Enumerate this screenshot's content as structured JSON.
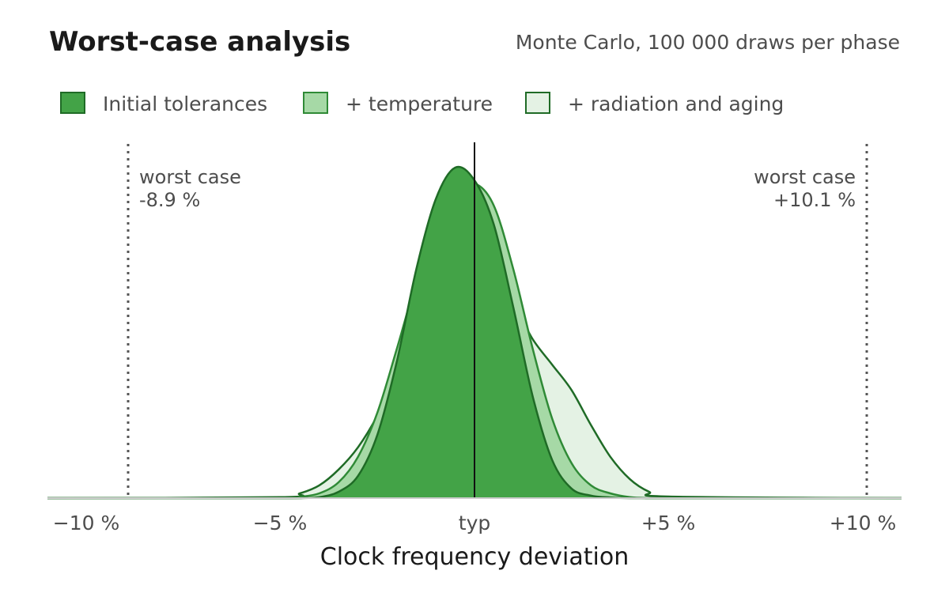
{
  "chart_data": {
    "type": "area",
    "title": "Worst-case analysis",
    "subtitle": "Monte Carlo, 100 000 draws per phase",
    "xlabel": "Clock frequency deviation",
    "ylabel": "",
    "xlim": [
      -11,
      11
    ],
    "ylim": [
      0,
      1.05
    ],
    "grid": false,
    "legend_position": "top-left",
    "x_ticks": [
      {
        "value": -10,
        "label": "−10 %"
      },
      {
        "value": -5,
        "label": "−5 %"
      },
      {
        "value": 0,
        "label": "typ"
      },
      {
        "value": 5,
        "label": "+5 %"
      },
      {
        "value": 10,
        "label": "+10 %"
      }
    ],
    "x": [
      -11,
      -5,
      -4.5,
      -4,
      -3.5,
      -3,
      -2.5,
      -2,
      -1.5,
      -1,
      -0.5,
      0,
      0.5,
      1,
      1.5,
      2,
      2.5,
      3,
      3.5,
      4,
      4.5,
      5,
      11
    ],
    "series": [
      {
        "name": "+ radiation and aging",
        "fill": "#e4f2e4",
        "stroke": "#1f6b26",
        "values": [
          0,
          0.003,
          0.015,
          0.04,
          0.09,
          0.16,
          0.26,
          0.39,
          0.52,
          0.61,
          0.64,
          0.645,
          0.655,
          0.61,
          0.5,
          0.42,
          0.34,
          0.23,
          0.13,
          0.06,
          0.02,
          0.005,
          0
        ]
      },
      {
        "name": "+ temperature",
        "fill": "#a6d9a6",
        "stroke": "#2f8a36",
        "values": [
          0,
          0,
          0.004,
          0.015,
          0.05,
          0.13,
          0.27,
          0.47,
          0.68,
          0.85,
          0.96,
          0.99,
          0.92,
          0.72,
          0.47,
          0.25,
          0.11,
          0.04,
          0.015,
          0.003,
          0,
          0,
          0
        ]
      },
      {
        "name": "Initial tolerances",
        "fill": "#43a347",
        "stroke": "#1f6b26",
        "values": [
          0,
          0,
          0,
          0.003,
          0.02,
          0.07,
          0.2,
          0.43,
          0.72,
          0.94,
          1.04,
          1.0,
          0.86,
          0.6,
          0.32,
          0.12,
          0.03,
          0.008,
          0.002,
          0,
          0,
          0,
          0
        ]
      }
    ],
    "reference_lines": [
      {
        "name": "worst-case-low",
        "x": -8.9,
        "label_line1": "worst case",
        "label_line2": "-8.9 %",
        "align": "left"
      },
      {
        "name": "worst-case-high",
        "x": 10.1,
        "label_line1": "worst case",
        "label_line2": "+10.1 %",
        "align": "right"
      },
      {
        "name": "typical",
        "x": 0,
        "style": "solid"
      }
    ],
    "legend": [
      {
        "label": "Initial tolerances",
        "fill": "#43a347",
        "stroke": "#1f6b26"
      },
      {
        "label": "+ temperature",
        "fill": "#a6d9a6",
        "stroke": "#2f8a36"
      },
      {
        "label": "+ radiation and aging",
        "fill": "#e4f2e4",
        "stroke": "#1f6b26"
      }
    ]
  }
}
